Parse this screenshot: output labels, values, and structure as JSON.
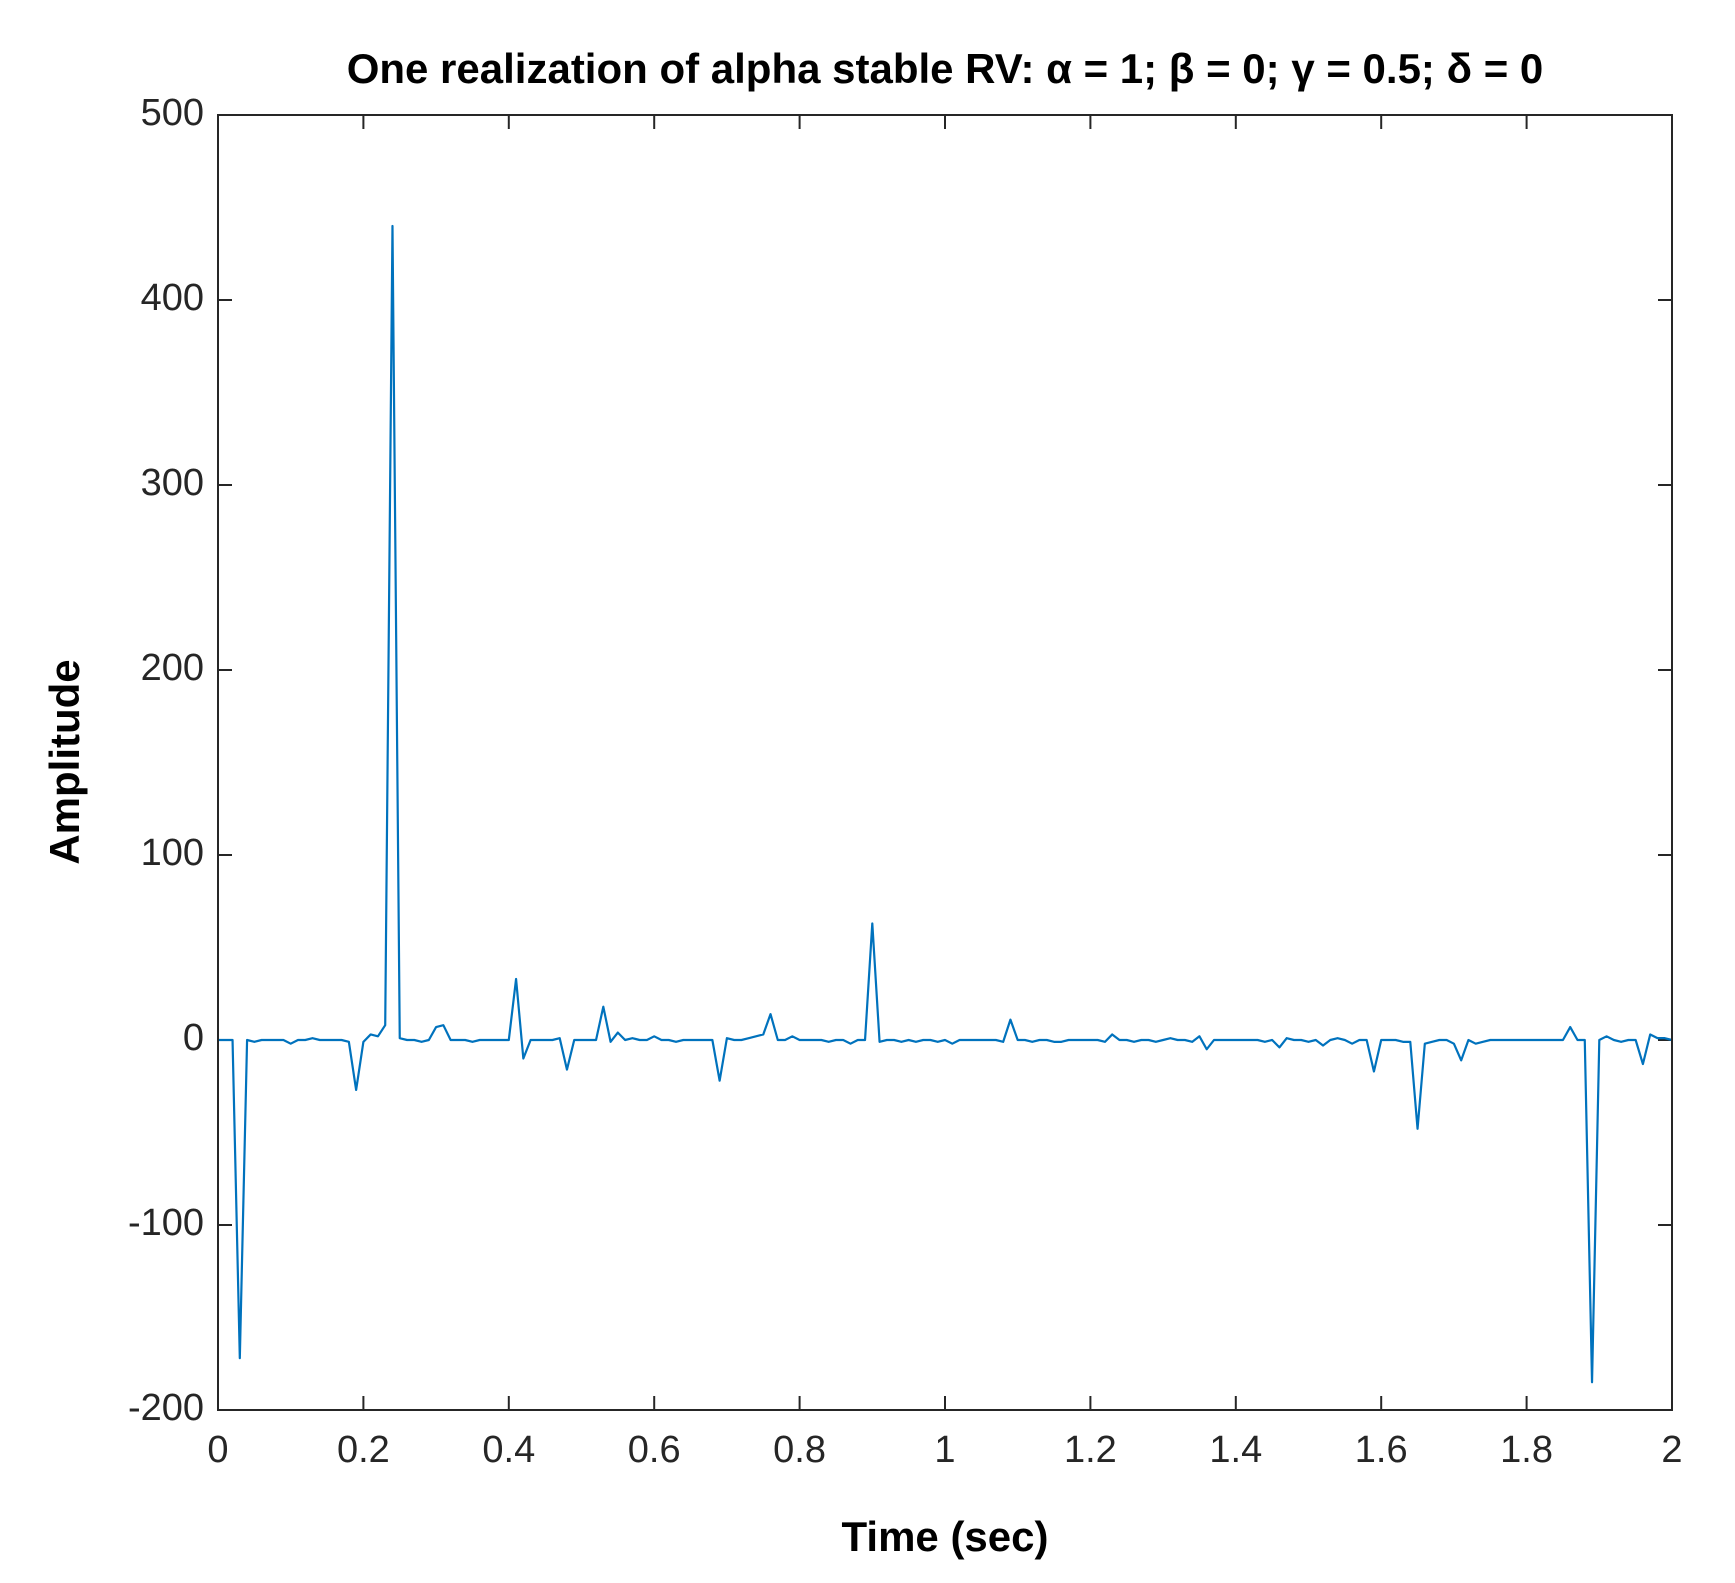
{
  "chart_data": {
    "type": "line",
    "title": "One realization of alpha stable RV: α = 1; β = 0; γ = 0.5; δ = 0",
    "xlabel": "Time (sec)",
    "ylabel": "Amplitude",
    "color": "#0072bd",
    "xlim": [
      0,
      2
    ],
    "ylim": [
      -200,
      500
    ],
    "xticks": [
      0,
      0.2,
      0.4,
      0.6,
      0.8,
      1,
      1.2,
      1.4,
      1.6,
      1.8,
      2
    ],
    "yticks": [
      -200,
      -100,
      0,
      100,
      200,
      300,
      400,
      500
    ],
    "x": [
      0,
      0.01,
      0.02,
      0.03,
      0.04,
      0.05,
      0.06,
      0.07,
      0.08,
      0.09,
      0.1,
      0.11,
      0.12,
      0.13,
      0.14,
      0.15,
      0.16,
      0.17,
      0.18,
      0.19,
      0.2,
      0.21,
      0.22,
      0.23,
      0.24,
      0.25,
      0.26,
      0.27,
      0.28,
      0.29,
      0.3,
      0.31,
      0.32,
      0.33,
      0.34,
      0.35,
      0.36,
      0.37,
      0.38,
      0.39,
      0.4,
      0.41,
      0.42,
      0.43,
      0.44,
      0.45,
      0.46,
      0.47,
      0.48,
      0.49,
      0.5,
      0.51,
      0.52,
      0.53,
      0.54,
      0.55,
      0.56,
      0.57,
      0.58,
      0.59,
      0.6,
      0.61,
      0.62,
      0.63,
      0.64,
      0.65,
      0.66,
      0.67,
      0.68,
      0.69,
      0.7,
      0.71,
      0.72,
      0.73,
      0.74,
      0.75,
      0.76,
      0.77,
      0.78,
      0.79,
      0.8,
      0.81,
      0.82,
      0.83,
      0.84,
      0.85,
      0.86,
      0.87,
      0.88,
      0.89,
      0.9,
      0.91,
      0.92,
      0.93,
      0.94,
      0.95,
      0.96,
      0.97,
      0.98,
      0.99,
      1,
      1.01,
      1.02,
      1.03,
      1.04,
      1.05,
      1.06,
      1.07,
      1.08,
      1.09,
      1.1,
      1.11,
      1.12,
      1.13,
      1.14,
      1.15,
      1.16,
      1.17,
      1.18,
      1.19,
      1.2,
      1.21,
      1.22,
      1.23,
      1.24,
      1.25,
      1.26,
      1.27,
      1.28,
      1.29,
      1.3,
      1.31,
      1.32,
      1.33,
      1.34,
      1.35,
      1.36,
      1.37,
      1.38,
      1.39,
      1.4,
      1.41,
      1.42,
      1.43,
      1.44,
      1.45,
      1.46,
      1.47,
      1.48,
      1.49,
      1.5,
      1.51,
      1.52,
      1.53,
      1.54,
      1.55,
      1.56,
      1.57,
      1.58,
      1.59,
      1.6,
      1.61,
      1.62,
      1.63,
      1.64,
      1.65,
      1.66,
      1.67,
      1.68,
      1.69,
      1.7,
      1.71,
      1.72,
      1.73,
      1.74,
      1.75,
      1.76,
      1.77,
      1.78,
      1.79,
      1.8,
      1.81,
      1.82,
      1.83,
      1.84,
      1.85,
      1.86,
      1.87,
      1.88,
      1.89,
      1.9,
      1.91,
      1.92,
      1.93,
      1.94,
      1.95,
      1.96,
      1.97,
      1.98,
      1.99,
      2
    ],
    "values": [
      0,
      0,
      0,
      -172,
      0,
      -1,
      0,
      0,
      0,
      0,
      -2,
      0,
      0,
      1,
      0,
      0,
      0,
      0,
      -1,
      -27,
      -1,
      3,
      2,
      8,
      440,
      1,
      0,
      0,
      -1,
      0,
      7,
      8,
      0,
      0,
      0,
      -1,
      0,
      0,
      0,
      0,
      0,
      33,
      -10,
      0,
      0,
      0,
      0,
      1,
      -16,
      0,
      0,
      0,
      0,
      18,
      -1,
      4,
      0,
      1,
      0,
      0,
      2,
      0,
      0,
      -1,
      0,
      0,
      0,
      0,
      0,
      -22,
      1,
      0,
      0,
      1,
      2,
      3,
      14,
      0,
      0,
      2,
      0,
      0,
      0,
      0,
      -1,
      0,
      0,
      -2,
      0,
      0,
      63,
      -1,
      0,
      0,
      -1,
      0,
      -1,
      0,
      0,
      -1,
      0,
      -2,
      0,
      0,
      0,
      0,
      0,
      0,
      -1,
      11,
      0,
      0,
      -1,
      0,
      0,
      -1,
      -1,
      0,
      0,
      0,
      0,
      0,
      -1,
      3,
      0,
      0,
      -1,
      0,
      0,
      -1,
      0,
      1,
      0,
      0,
      -1,
      2,
      -5,
      0,
      0,
      0,
      0,
      0,
      0,
      0,
      -1,
      0,
      -4,
      1,
      0,
      0,
      -1,
      0,
      -3,
      0,
      1,
      0,
      -2,
      0,
      0,
      -17,
      0,
      0,
      0,
      -1,
      -1,
      -48,
      -2,
      -1,
      0,
      0,
      -2,
      -11,
      0,
      -2,
      -1,
      0,
      0,
      0,
      0,
      0,
      0,
      0,
      0,
      0,
      0,
      0,
      7,
      0,
      0,
      -185,
      0,
      2,
      0,
      -1,
      0,
      0,
      -13,
      3,
      1,
      1,
      0
    ]
  }
}
